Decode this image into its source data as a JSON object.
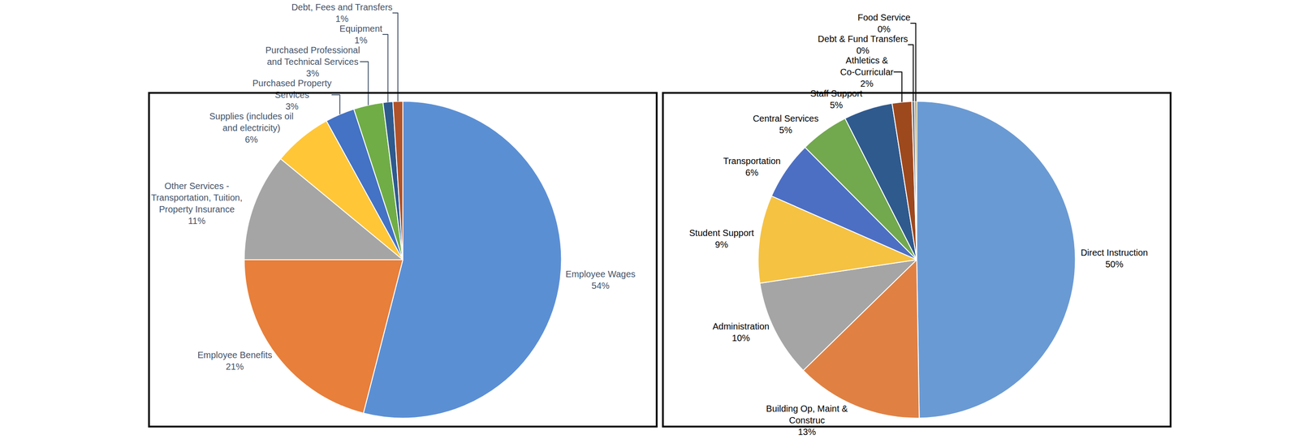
{
  "chart_data": [
    {
      "type": "pie",
      "categories": [
        "Employee Wages",
        "Employee Benefits",
        "Other Services - Transportation, Tuition, Property Insurance",
        "Supplies (includes oil and electricity)",
        "Purchased Property Services",
        "Purchased Professional and Technical Services",
        "Equipment",
        "Debt, Fees and Transfers"
      ],
      "values": [
        54,
        21,
        11,
        6,
        3,
        3,
        1,
        1
      ],
      "value_labels": [
        "54%",
        "21%",
        "11%",
        "6%",
        "3%",
        "3%",
        "1%",
        "1%"
      ],
      "colors": [
        "#5B8FD4",
        "#E87F3A",
        "#A5A5A5",
        "#FFC637",
        "#4472C4",
        "#70AD47",
        "#2E5A8E",
        "#B0532A"
      ],
      "data_labels": true
    },
    {
      "type": "pie",
      "categories": [
        "Direct Instruction",
        "Building Op, Maint & Construc",
        "Administration",
        "Student Support",
        "Transportation",
        "Central Services",
        "Staff Support",
        "Athletics & Co-Curricular",
        "Debt & Fund Transfers",
        "Food Service"
      ],
      "values": [
        50,
        13,
        10,
        9,
        6,
        5,
        5,
        2,
        0.3,
        0.2
      ],
      "value_labels": [
        "50%",
        "13%",
        "10%",
        "9%",
        "6%",
        "5%",
        "5%",
        "2%",
        "0%",
        "0%"
      ],
      "colors": [
        "#6A9AD3",
        "#E08143",
        "#A5A5A5",
        "#F5C242",
        "#4C6FC4",
        "#72A84E",
        "#2F5A8E",
        "#9E481E",
        "#7F7F7F",
        "#A28A2E"
      ],
      "data_labels": true
    }
  ]
}
